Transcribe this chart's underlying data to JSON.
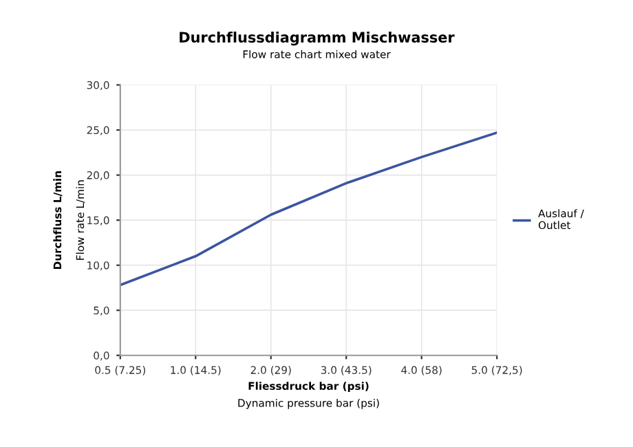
{
  "chart_data": {
    "type": "line",
    "title": "Durchflussdiagramm Mischwasser",
    "subtitle": "Flow rate chart mixed water",
    "xlabel": "Fliessdruck bar (psi)\nDynamic pressure bar (psi)",
    "ylabel": "Durchfluss L/min\nFlow rate L/min",
    "categories": [
      "0.5 (7.25)",
      "1.0 (14.5)",
      "2.0 (29)",
      "3.0 (43.5)",
      "4.0 (58)",
      "5.0 (72,5)"
    ],
    "series": [
      {
        "name": "Auslauf /\nOutlet",
        "color": "#3b55a0",
        "values": [
          7.8,
          11.0,
          15.6,
          19.1,
          22.0,
          24.7
        ]
      }
    ],
    "ylim": [
      0,
      30
    ],
    "yticks": [
      {
        "value": 0,
        "label": "0,0"
      },
      {
        "value": 5,
        "label": "5,0"
      },
      {
        "value": 10,
        "label": "10,0"
      },
      {
        "value": 15,
        "label": "15,0"
      },
      {
        "value": 20,
        "label": "20,0"
      },
      {
        "value": 25,
        "label": "25,0"
      },
      {
        "value": 30,
        "label": "30,0"
      }
    ],
    "grid": true,
    "legend": "right",
    "marker": "none",
    "line_style": "solid"
  }
}
